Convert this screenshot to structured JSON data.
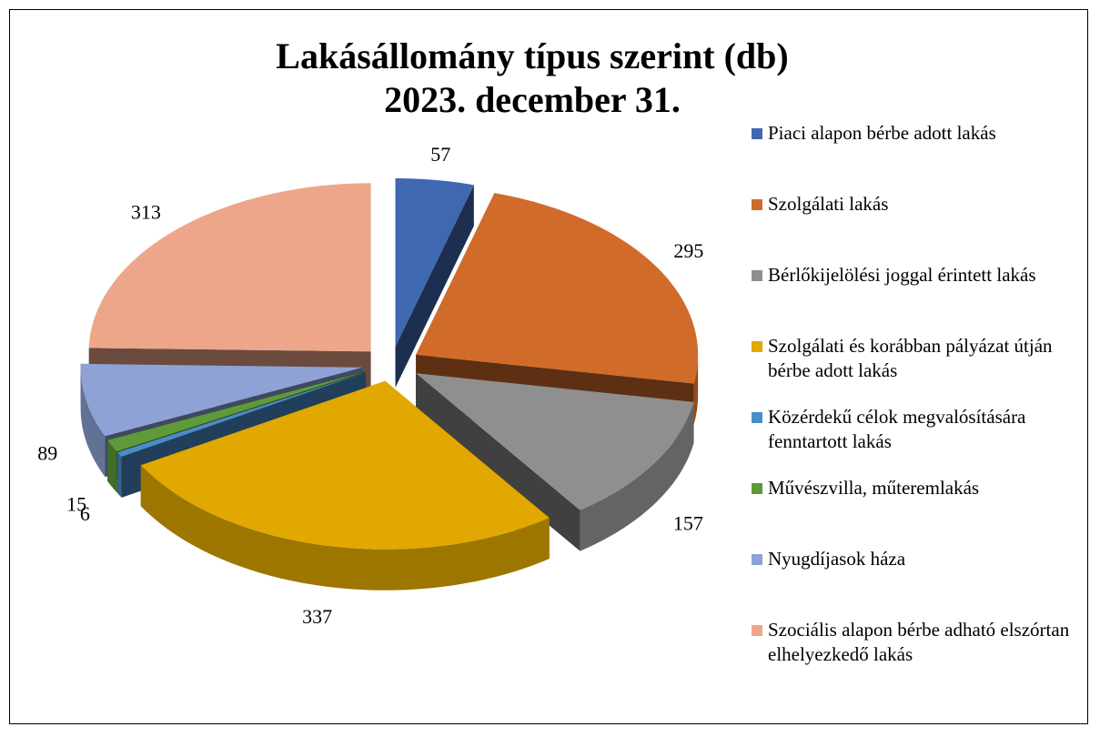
{
  "chart_data": {
    "type": "pie3d",
    "title": "Lakásállomány típus szerint (db)",
    "subtitle": "2023. december 31.",
    "categories": [
      "Piaci alapon bérbe adott lakás",
      "Szolgálati lakás",
      "Bérlőkijelölési joggal érintett lakás",
      "Szolgálati és korábban pályázat útján bérbe adott lakás",
      "Közérdekű célok megvalósítására fenntartott lakás",
      "Művészvilla, műteremlakás",
      "Nyugdíjasok háza",
      "Szociális alapon bérbe adható elszórtan elhelyezkedő lakás"
    ],
    "values": [
      57,
      295,
      157,
      337,
      6,
      15,
      89,
      313
    ],
    "colors": [
      "#4068b0",
      "#d06b2a",
      "#8f8f8f",
      "#e0a800",
      "#4a8cc8",
      "#5e9a3a",
      "#8fa2d6",
      "#eda68a"
    ],
    "legend": "right"
  }
}
